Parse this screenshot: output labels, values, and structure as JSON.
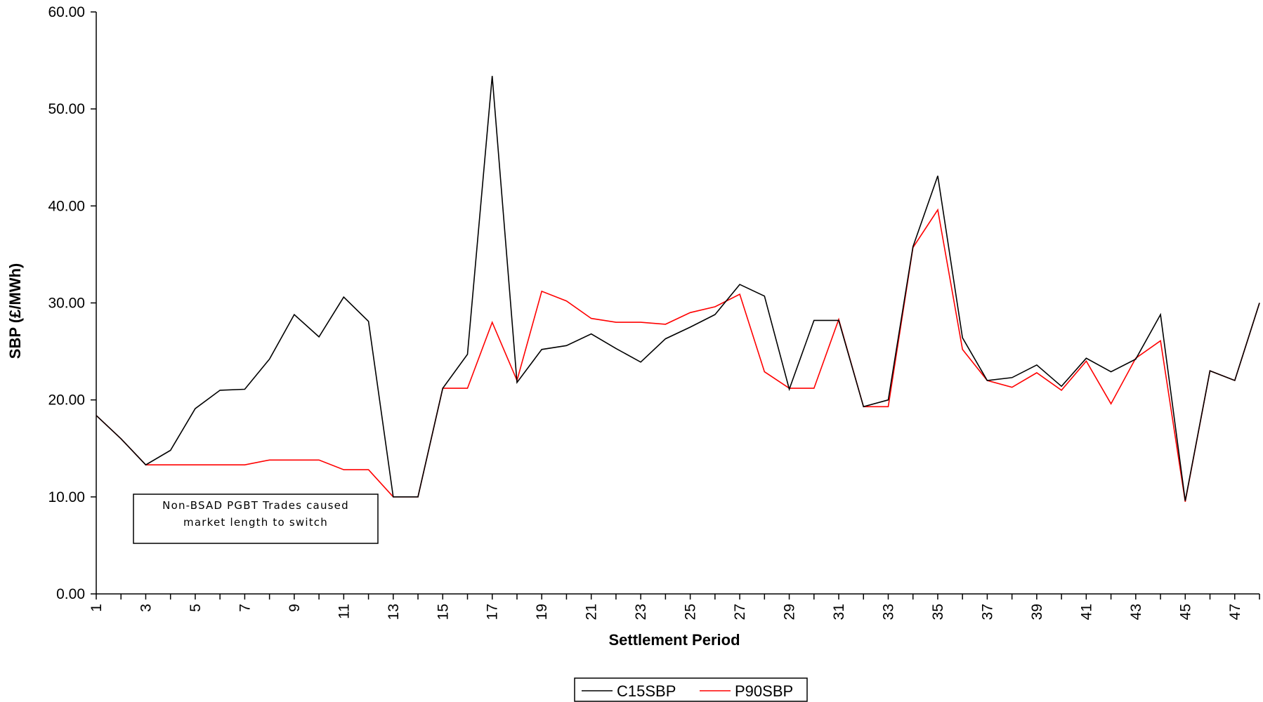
{
  "chart_data": {
    "type": "line",
    "xlabel": "Settlement Period",
    "ylabel": "SBP (£/MWh)",
    "ylim": [
      0,
      60
    ],
    "yticks": [
      "0.00",
      "10.00",
      "20.00",
      "30.00",
      "40.00",
      "50.00",
      "60.00"
    ],
    "x": [
      1,
      2,
      3,
      4,
      5,
      6,
      7,
      8,
      9,
      10,
      11,
      12,
      13,
      14,
      15,
      16,
      17,
      18,
      19,
      20,
      21,
      22,
      23,
      24,
      25,
      26,
      27,
      28,
      29,
      30,
      31,
      32,
      33,
      34,
      35,
      36,
      37,
      38,
      39,
      40,
      41,
      42,
      43,
      44,
      45,
      46,
      47,
      48
    ],
    "xtick_labels": [
      "1",
      "3",
      "5",
      "7",
      "9",
      "11",
      "13",
      "15",
      "17",
      "19",
      "21",
      "23",
      "25",
      "27",
      "29",
      "31",
      "33",
      "35",
      "37",
      "39",
      "41",
      "43",
      "45",
      "47"
    ],
    "series": [
      {
        "name": "C15SBP",
        "color": "#000000",
        "values": [
          18.4,
          16.0,
          13.3,
          14.8,
          19.1,
          21.0,
          21.1,
          24.2,
          28.8,
          26.5,
          30.6,
          28.1,
          10.0,
          10.0,
          21.2,
          24.7,
          53.4,
          21.8,
          25.2,
          25.6,
          26.8,
          25.3,
          23.9,
          26.3,
          27.5,
          28.8,
          31.9,
          30.7,
          21.1,
          28.2,
          28.2,
          19.3,
          20.0,
          35.8,
          43.1,
          26.4,
          22.0,
          22.3,
          23.6,
          21.4,
          24.3,
          22.9,
          24.2,
          28.8,
          9.6,
          23.0,
          22.0,
          30.0
        ]
      },
      {
        "name": "P90SBP",
        "color": "#ff0000",
        "values": [
          18.4,
          16.0,
          13.3,
          13.3,
          13.3,
          13.3,
          13.3,
          13.8,
          13.8,
          13.8,
          12.8,
          12.8,
          10.0,
          10.0,
          21.2,
          21.2,
          28.0,
          22.0,
          31.2,
          30.2,
          28.4,
          28.0,
          28.0,
          27.8,
          29.0,
          29.6,
          30.9,
          22.9,
          21.2,
          21.2,
          28.3,
          19.3,
          19.3,
          35.7,
          39.6,
          25.2,
          22.0,
          21.3,
          22.8,
          21.0,
          24.0,
          19.6,
          24.3,
          26.1,
          9.5,
          23.0,
          22.0,
          30.0
        ]
      }
    ],
    "annotation": [
      "Non-BSAD PGBT Trades caused",
      "market length to switch"
    ],
    "legend_position": "bottom-center",
    "grid": false
  }
}
